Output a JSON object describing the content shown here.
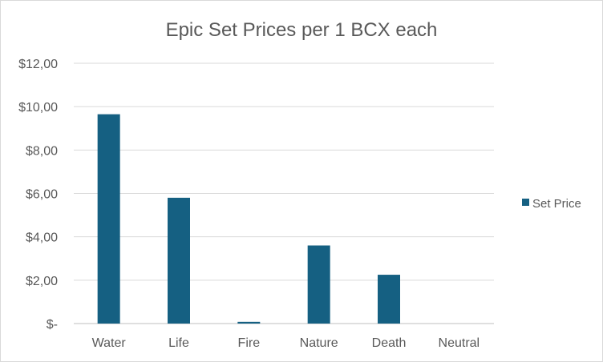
{
  "chart_data": {
    "type": "bar",
    "title": "Epic Set Prices per 1 BCX each",
    "categories": [
      "Water",
      "Life",
      "Fire",
      "Nature",
      "Death",
      "Neutral"
    ],
    "series": [
      {
        "name": "Set Price",
        "values": [
          9.65,
          5.8,
          0.08,
          3.6,
          2.25,
          0.0
        ],
        "color": "#156082"
      }
    ],
    "ylim": [
      0,
      12
    ],
    "y_ticks": [
      0,
      2,
      4,
      6,
      8,
      10,
      12
    ],
    "y_tick_labels": [
      "$-",
      "$2,00",
      "$4,00",
      "$6,00",
      "$8,00",
      "$10,00",
      "$12,00"
    ],
    "grid": true,
    "legend": "right",
    "xlabel": "",
    "ylabel": ""
  }
}
